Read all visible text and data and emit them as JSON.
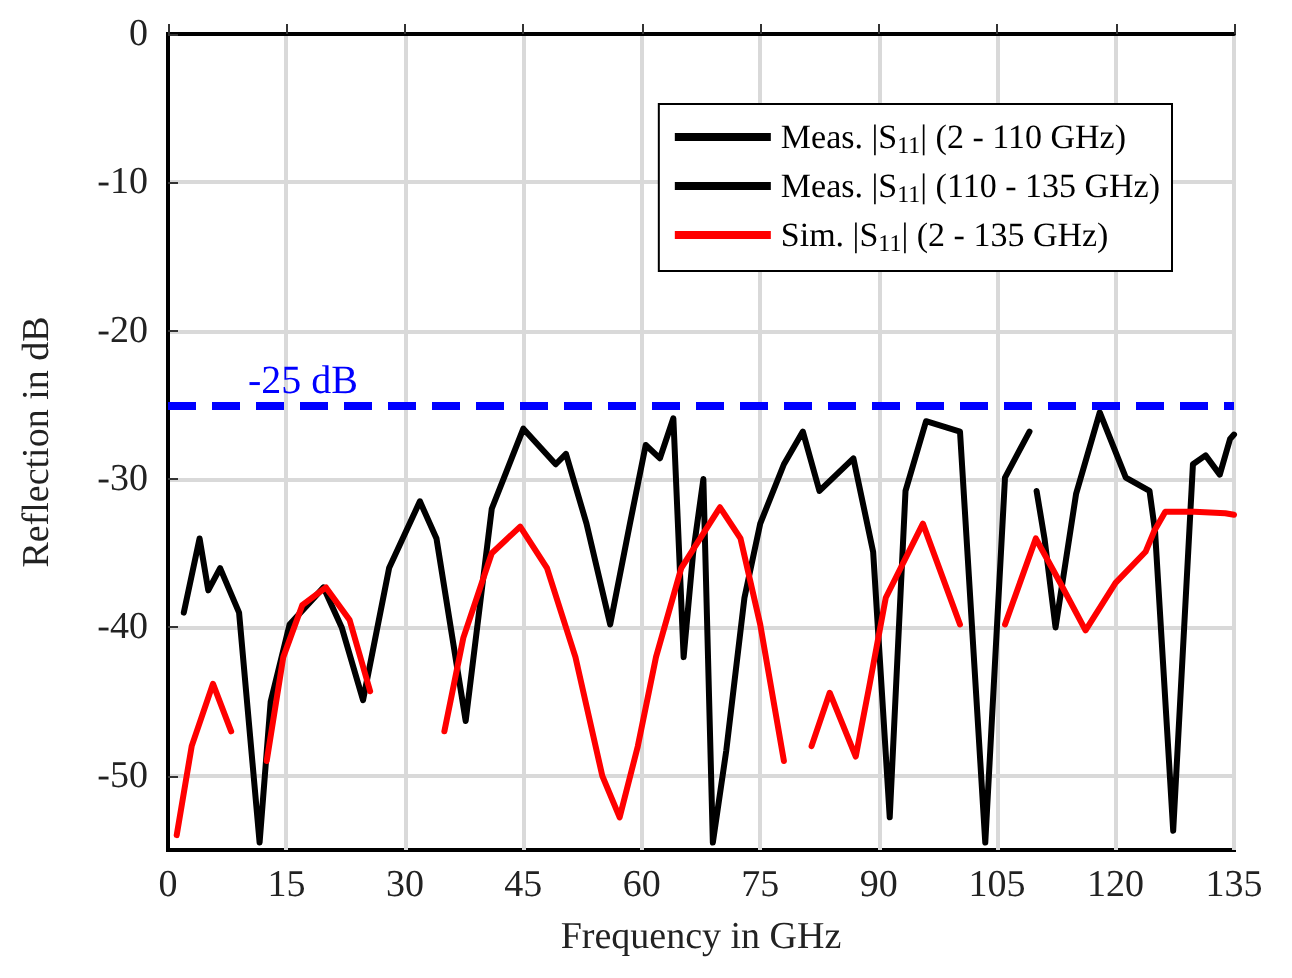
{
  "chart_data": {
    "type": "line",
    "xlabel": "Frequency in GHz",
    "ylabel": "Reflection in dB",
    "xlim": [
      0,
      135
    ],
    "xticks": [
      0,
      15,
      30,
      45,
      60,
      75,
      90,
      105,
      120,
      135
    ],
    "ylim": [
      -55,
      0
    ],
    "yticks": [
      -50,
      -40,
      -30,
      -20,
      -10,
      0
    ],
    "grid": true,
    "legend": "top right",
    "marker": "none",
    "line_style": "solid",
    "series": [
      {
        "name": "Meas. |S$_{11}$| (2 - 110 GHz)",
        "color": "#000000",
        "x": [
          2,
          4,
          5.1,
          6.6,
          9,
          11.6,
          13,
          15.4,
          19.7,
          22,
          24.7,
          28,
          31.9,
          34,
          37.7,
          41,
          45,
          49.1,
          50.4,
          53,
          56,
          58.5,
          60.5,
          62.3,
          64,
          65.3,
          66.5,
          67.8,
          69,
          70.7,
          73,
          75,
          78,
          80.4,
          82.5,
          86.8,
          89.3,
          91.4,
          93.4,
          96,
          100.3,
          103.5,
          106,
          109.1
        ],
        "values": [
          -39,
          -34,
          -37.5,
          -36,
          -39,
          -54.5,
          -45,
          -39.8,
          -37.3,
          -40,
          -44.9,
          -36,
          -31.5,
          -34,
          -46.3,
          -32,
          -26.6,
          -29,
          -28.3,
          -33,
          -39.8,
          -33,
          -27.7,
          -28.6,
          -25.9,
          -42,
          -35,
          -30,
          -54.5,
          -48.3,
          -38,
          -33,
          -29,
          -26.8,
          -30.8,
          -28.6,
          -34.9,
          -52.8,
          -30.8,
          -26.1,
          -26.8,
          -54.5,
          -29.9,
          -26.8
        ]
      },
      {
        "name": "Meas. |S$_{11}$| (110 - 135 GHz)",
        "color": "#000000",
        "x": [
          110,
          111,
          112.4,
          115,
          118,
          121.3,
          124.3,
          125,
          127.3,
          129.8,
          131.4,
          133.2,
          134.5,
          135
        ],
        "values": [
          -30.8,
          -34,
          -40,
          -31,
          -25.5,
          -29.9,
          -30.8,
          -33.5,
          -53.7,
          -29,
          -28.4,
          -29.7,
          -27.3,
          -27
        ]
      },
      {
        "name": "Sim. |S$_{11}$| (2 - 135 GHz)",
        "color": "#ff0000",
        "x": [
          1.1,
          3,
          5.7,
          8,
          9.5,
          11.6,
          12.5,
          14.6,
          17,
          20,
          23,
          25.6,
          28.9,
          33.2,
          35,
          37.4,
          41,
          44.6,
          48,
          51.6,
          55,
          57.2,
          59.5,
          61.8,
          65,
          69.9,
          72.5,
          75,
          78,
          80,
          81.5,
          83.8,
          87.1,
          88.8,
          90.9,
          95.6,
          100.3,
          103.5,
          106,
          109.9,
          113,
          116.2,
          120,
          123.8,
          124.9,
          126.3,
          130,
          133.9,
          135
        ],
        "values": [
          -54,
          -48,
          -43.8,
          -47,
          null,
          null,
          -49,
          -42,
          -38.5,
          -37.3,
          -39.5,
          -44.3,
          null,
          null,
          -47,
          -40.7,
          -35,
          -33.2,
          -36,
          -42,
          -50,
          -52.8,
          -48,
          -42,
          -36,
          -31.9,
          -34,
          -39.8,
          -49,
          null,
          -48,
          -44.4,
          -48.7,
          -44,
          -38,
          -33,
          -39.8,
          null,
          -39.8,
          -34,
          -37,
          -40.2,
          -37,
          -34.9,
          -33.5,
          -32.2,
          -32.2,
          -32.3,
          -32.4
        ]
      }
    ],
    "ref_lines": [
      {
        "axis": "y",
        "value": -25,
        "label": "-25 dB",
        "color": "#0000ff",
        "line_style": "dashed"
      }
    ]
  }
}
